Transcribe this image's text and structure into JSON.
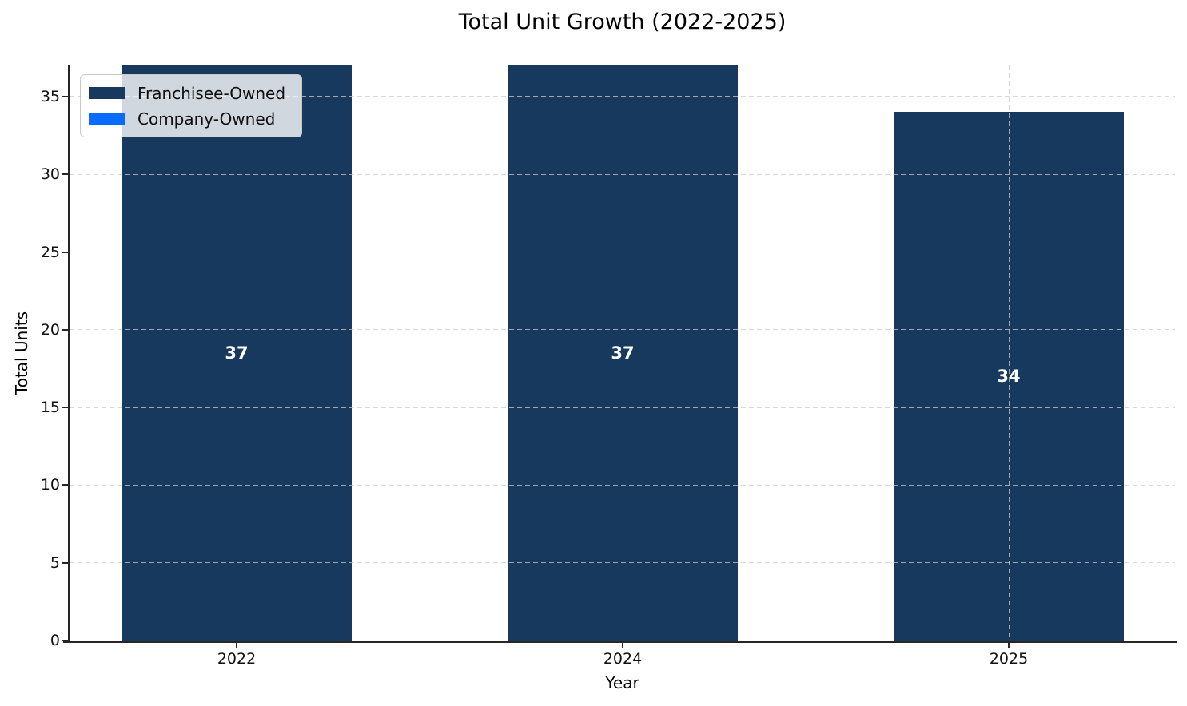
{
  "chart_data": {
    "type": "bar",
    "stacked": true,
    "title": "Total Unit Growth (2022-2025)",
    "xlabel": "Year",
    "ylabel": "Total Units",
    "categories": [
      "2022",
      "2024",
      "2025"
    ],
    "series": [
      {
        "name": "Franchisee-Owned",
        "color": "#17395e",
        "values": [
          37,
          37,
          34
        ]
      },
      {
        "name": "Company-Owned",
        "color": "#0a6cff",
        "values": [
          0,
          0,
          0
        ]
      }
    ],
    "bar_total_labels": [
      "37",
      "37",
      "34"
    ],
    "bar_label_color": "#ffffff",
    "yticks": [
      0,
      5,
      10,
      15,
      20,
      25,
      30,
      35
    ],
    "ylim": [
      0,
      37
    ],
    "grid": {
      "style": "dashed",
      "color": "#cbcbcb",
      "x_grid": true,
      "y_grid": true
    },
    "legend": {
      "position": "upper-left",
      "entries": [
        {
          "label": "Franchisee-Owned",
          "color": "#17395e"
        },
        {
          "label": "Company-Owned",
          "color": "#0a6cff"
        }
      ]
    },
    "colors": {
      "background": "#ffffff",
      "spine": "#262626",
      "tick_label": "#111111"
    }
  }
}
